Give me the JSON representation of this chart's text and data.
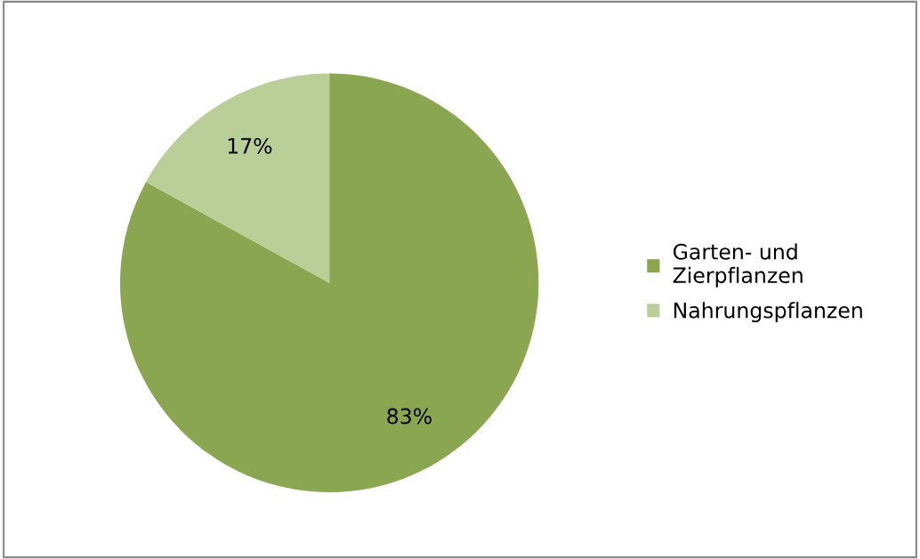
{
  "chart_data": {
    "type": "pie",
    "categories": [
      "Garten- und\nZierpflanzen",
      "Nahrungspflanzen"
    ],
    "values": [
      83,
      17
    ],
    "colors": [
      "#8aa650",
      "#bacf98"
    ],
    "value_labels": [
      "83%",
      "17%"
    ],
    "legend": "right"
  }
}
